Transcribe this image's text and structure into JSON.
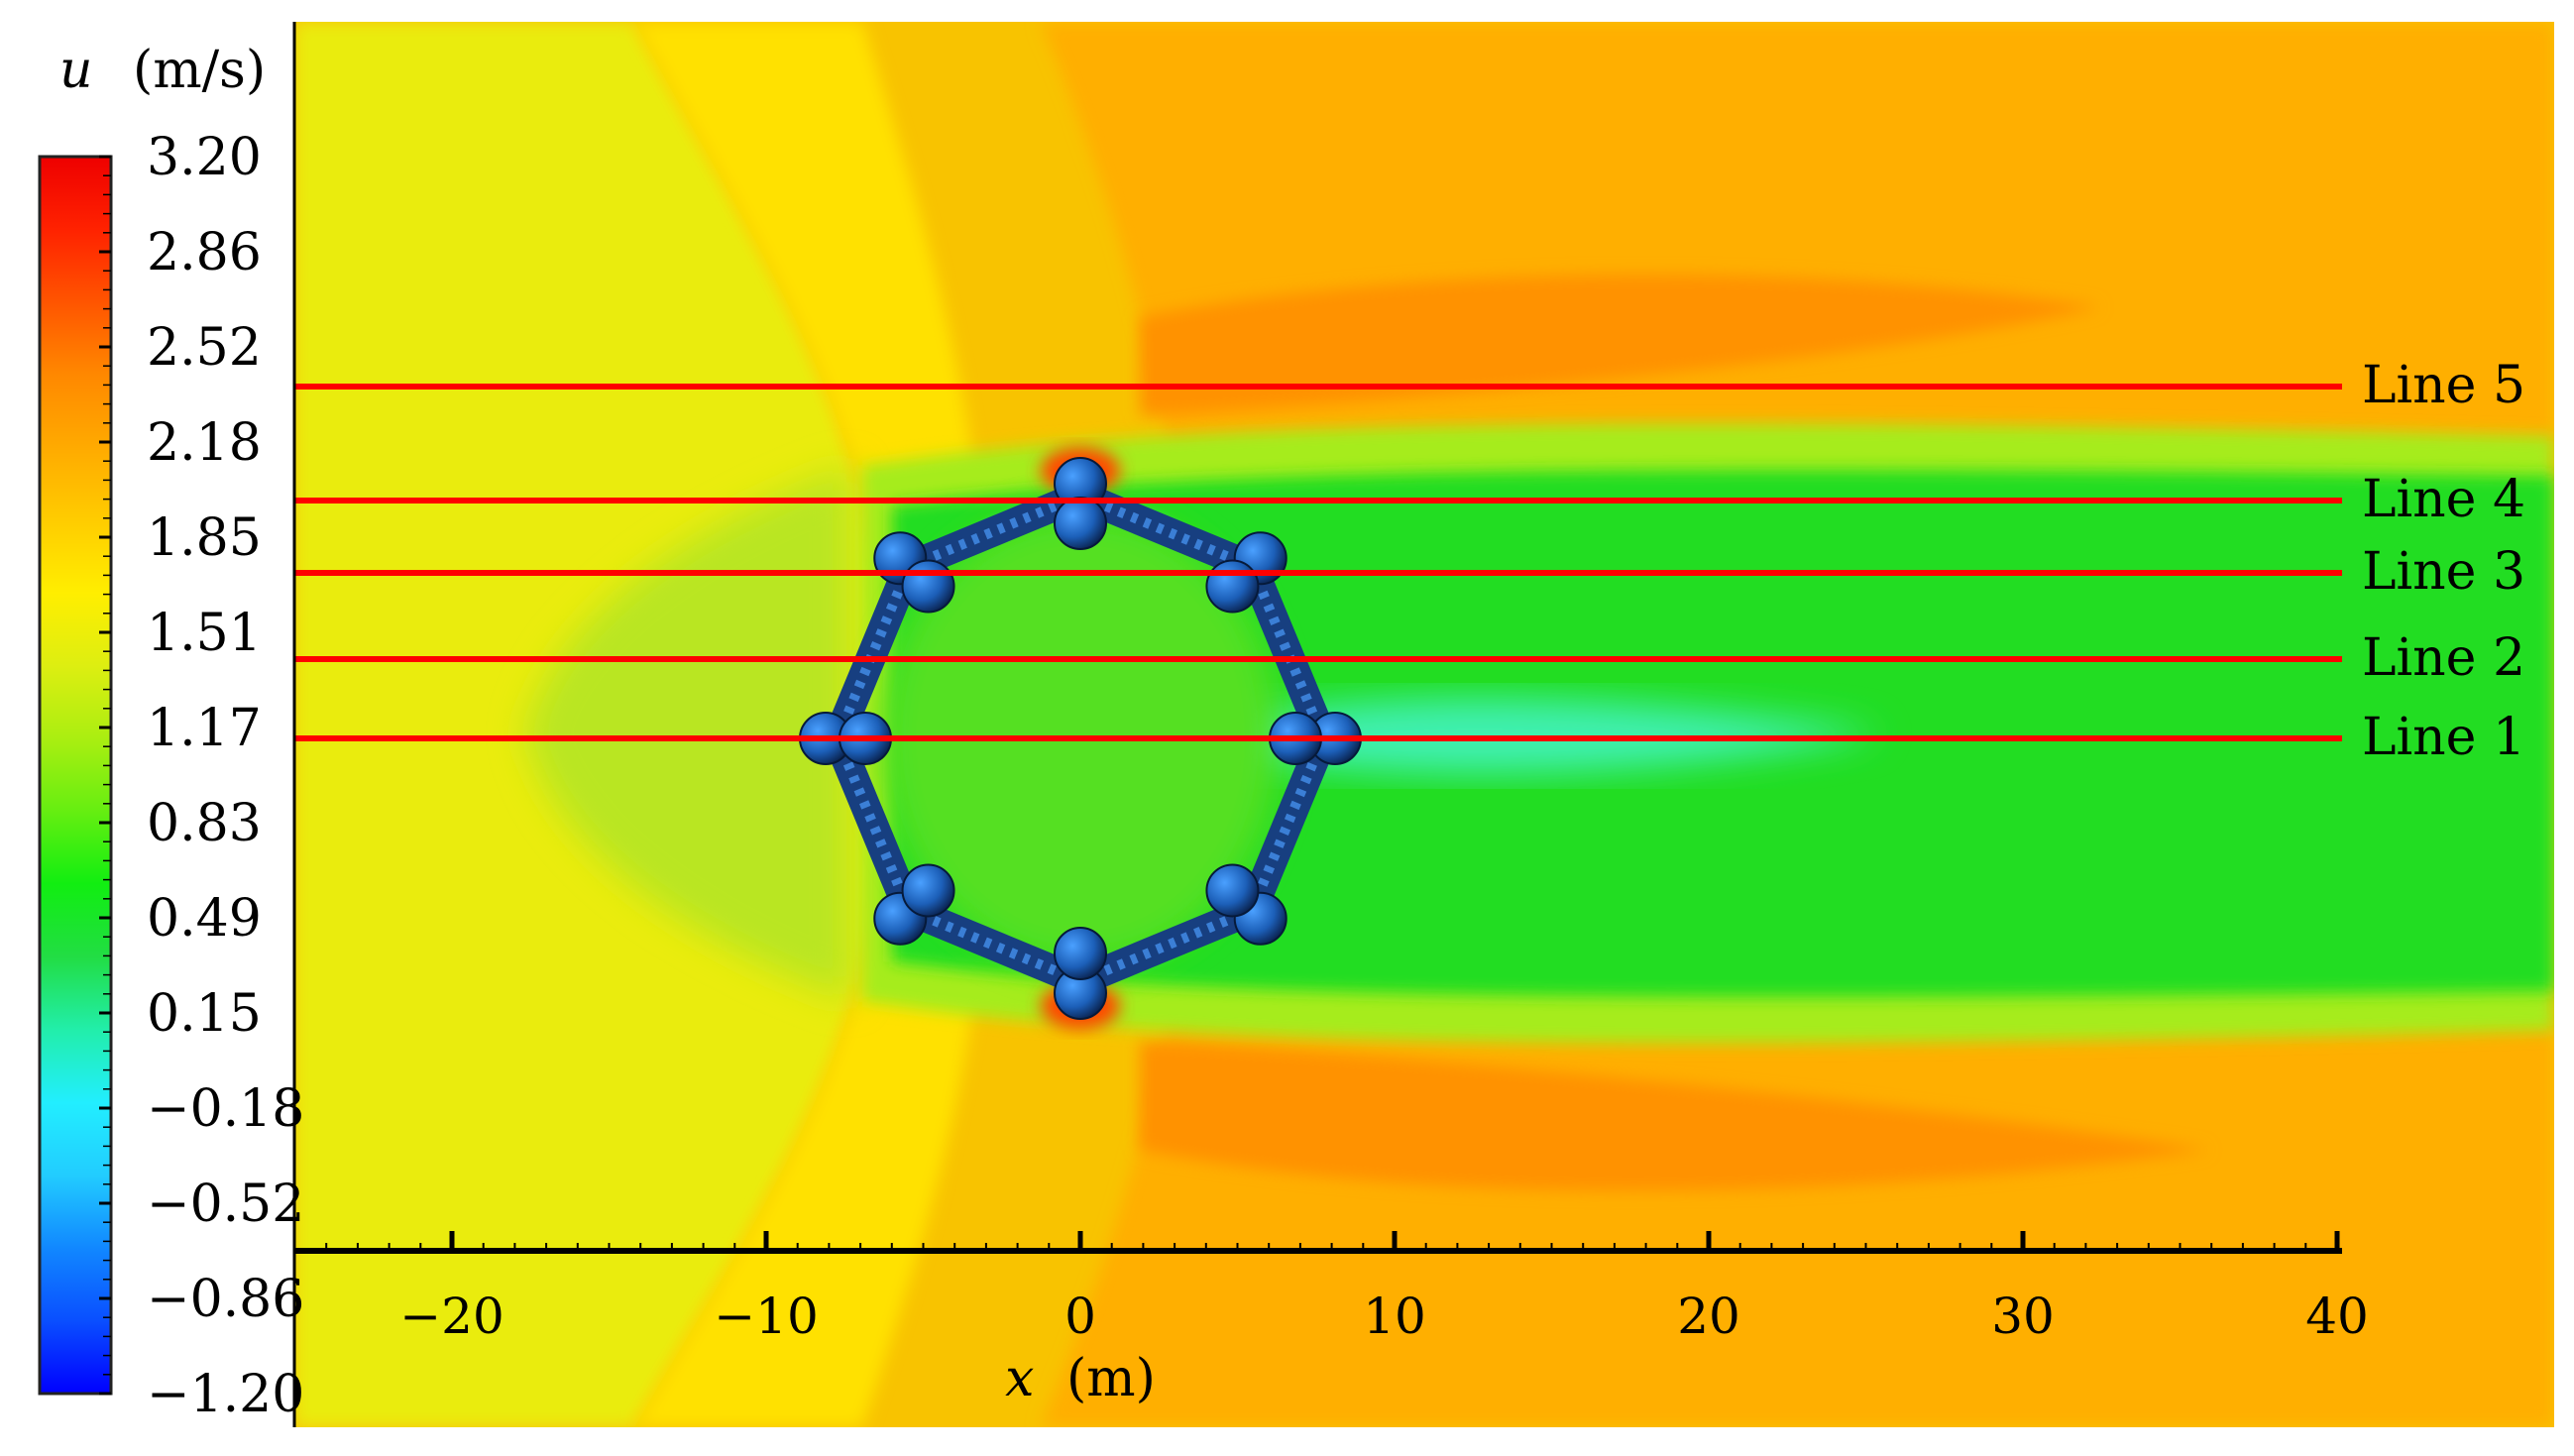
{
  "chart_data": {
    "type": "heatmap",
    "quantity_symbol": "u",
    "quantity_unit": "(m/s)",
    "xlabel_symbol": "x",
    "xlabel_unit": "(m)",
    "x_ticks": [
      -20,
      -10,
      0,
      10,
      20,
      30,
      40
    ],
    "x_tick_labels": [
      "−20",
      "−10",
      "0",
      "10",
      "20",
      "30",
      "40"
    ],
    "xlim": [
      -25,
      40
    ],
    "colorbar": {
      "range": [
        -1.2,
        3.2
      ],
      "tick_labels": [
        "3.20",
        "2.86",
        "2.52",
        "2.18",
        "1.85",
        "1.51",
        "1.17",
        "0.83",
        "0.49",
        "0.15",
        "−0.18",
        "−0.52",
        "−0.86",
        "−1.20"
      ],
      "tick_values": [
        3.2,
        2.86,
        2.52,
        2.18,
        1.85,
        1.51,
        1.17,
        0.83,
        0.49,
        0.15,
        -0.18,
        -0.52,
        -0.86,
        -1.2
      ],
      "colors": [
        "#0000ff",
        "#0a4fff",
        "#1188ff",
        "#22ccff",
        "#22eeff",
        "#22eeaa",
        "#22dd44",
        "#11ee11",
        "#66ee11",
        "#aaee11",
        "#ddee11",
        "#ffee00",
        "#ffcc00",
        "#ffaa00",
        "#ff8800",
        "#ff5500",
        "#ff2200",
        "#ee0000"
      ]
    },
    "lines": [
      {
        "label": "Line 5",
        "color": "#ff0000"
      },
      {
        "label": "Line 4",
        "color": "#ff0000"
      },
      {
        "label": "Line 3",
        "color": "#ff0000"
      },
      {
        "label": "Line 2",
        "color": "#ff0000"
      },
      {
        "label": "Line 1",
        "color": "#ff0000"
      }
    ],
    "structure": {
      "shape": "octagon",
      "center_x": 0,
      "floaters": 8,
      "color": "#1f5fa8"
    }
  }
}
